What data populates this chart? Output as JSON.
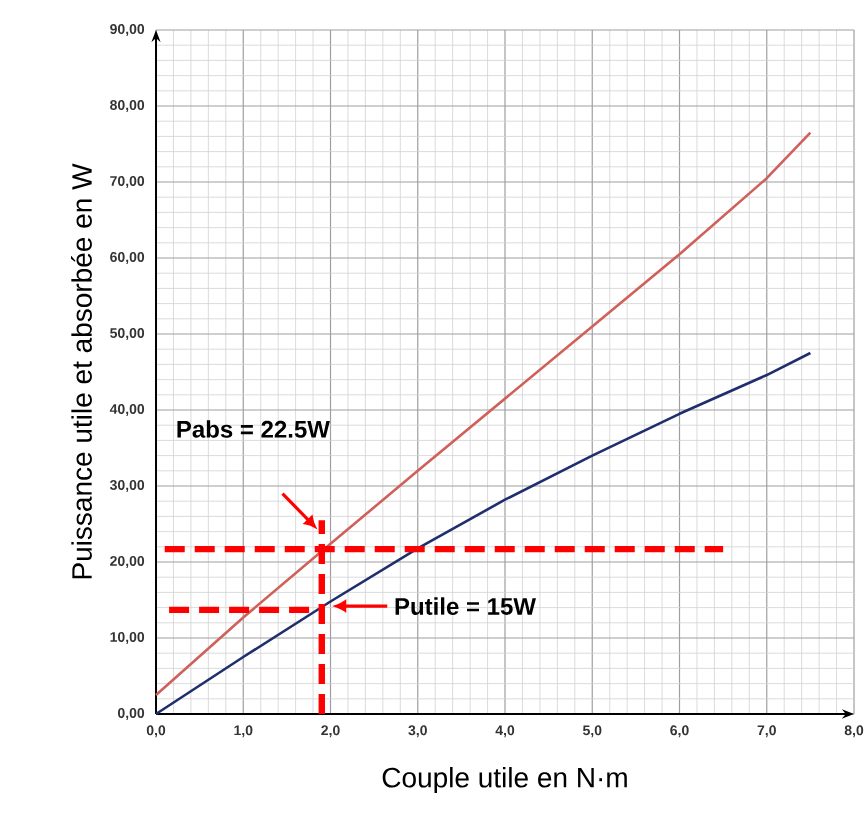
{
  "chart_data": {
    "type": "line",
    "xlabel": "Couple utile en N·m",
    "ylabel": "Puissance utile et absorbée en W",
    "xlim": [
      0,
      8
    ],
    "ylim": [
      0,
      90
    ],
    "xticks": [
      {
        "value": 0,
        "label": "0,0"
      },
      {
        "value": 1,
        "label": "1,0"
      },
      {
        "value": 2,
        "label": "2,0"
      },
      {
        "value": 3,
        "label": "3,0"
      },
      {
        "value": 4,
        "label": "4,0"
      },
      {
        "value": 5,
        "label": "5,0"
      },
      {
        "value": 6,
        "label": "6,0"
      },
      {
        "value": 7,
        "label": "7,0"
      },
      {
        "value": 8,
        "label": "8,0"
      }
    ],
    "yticks": [
      {
        "value": 0,
        "label": "0,00"
      },
      {
        "value": 10,
        "label": "10,00"
      },
      {
        "value": 20,
        "label": "20,00"
      },
      {
        "value": 30,
        "label": "30,00"
      },
      {
        "value": 40,
        "label": "40,00"
      },
      {
        "value": 50,
        "label": "50,00"
      },
      {
        "value": 60,
        "label": "60,00"
      },
      {
        "value": 70,
        "label": "70,00"
      },
      {
        "value": 80,
        "label": "80,00"
      },
      {
        "value": 90,
        "label": "90,00"
      }
    ],
    "grid": true,
    "marker": "none",
    "series": [
      {
        "color": "#d0605a",
        "line_style": "solid",
        "x": [
          0,
          1,
          2,
          3,
          4,
          5,
          6,
          7,
          7.5
        ],
        "values": [
          2.5,
          12.7,
          22.4,
          32,
          41.5,
          51,
          60.5,
          70.5,
          76.5
        ]
      },
      {
        "color": "#1f2f6e",
        "line_style": "solid",
        "x": [
          0,
          1,
          2,
          3,
          4,
          5,
          6,
          7,
          7.5
        ],
        "values": [
          0,
          7.5,
          14.8,
          21.8,
          28.2,
          34,
          39.5,
          44.6,
          47.5
        ]
      },
      {
        "color": "#ff0000",
        "line_style": "dashed",
        "x": [
          0.1,
          6.5
        ],
        "values": [
          21.7,
          21.7
        ]
      },
      {
        "color": "#ff0000",
        "line_style": "dashed",
        "x": [
          1.9,
          1.9
        ],
        "values": [
          0,
          25.5
        ]
      },
      {
        "color": "#ff0000",
        "line_style": "dashed",
        "x": [
          0.15,
          1.9
        ],
        "values": [
          13.7,
          13.7
        ]
      }
    ],
    "annotations": [
      "Pabs = 22.5W",
      "Putile = 15W"
    ]
  }
}
